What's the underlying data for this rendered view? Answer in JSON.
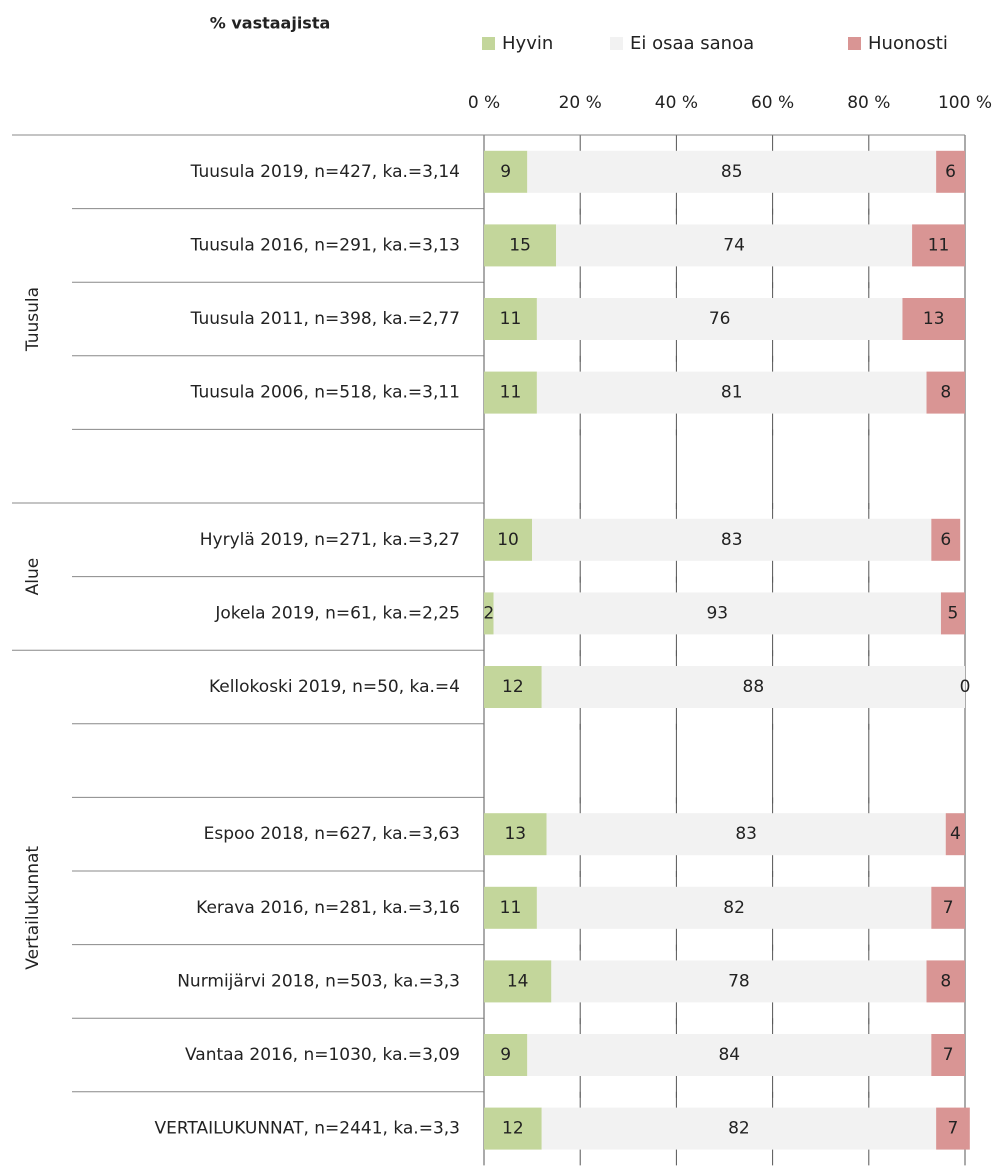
{
  "chart_data": {
    "type": "stacked-bar-horizontal",
    "title": "% vastaajista",
    "categories": [
      "Tuusula 2019, n=427, ka.=3,14",
      "Tuusula 2016, n=291, ka.=3,13",
      "Tuusula 2011, n=398, ka.=2,77",
      "Tuusula 2006, n=518, ka.=3,11",
      null,
      "Hyrylä 2019, n=271, ka.=3,27",
      "Jokela 2019, n=61, ka.=2,25",
      "Kellokoski 2019, n=50, ka.=4",
      null,
      "Espoo 2018, n=627, ka.=3,63",
      "Kerava 2016, n=281, ka.=3,16",
      "Nurmijärvi 2018, n=503, ka.=3,3",
      "Vantaa 2016, n=1030, ka.=3,09",
      "VERTAILUKUNNAT, n=2441, ka.=3,3"
    ],
    "groups": [
      "Tuusula",
      "Alue",
      "Vertailukunnat"
    ],
    "series": [
      {
        "name": "Hyvin",
        "color": "#c3d69b",
        "values": [
          9,
          15,
          11,
          11,
          null,
          10,
          2,
          12,
          null,
          13,
          11,
          14,
          9,
          12
        ]
      },
      {
        "name": "Ei osaa sanoa",
        "color": "#f2f2f2",
        "values": [
          85,
          74,
          76,
          81,
          null,
          83,
          93,
          88,
          null,
          83,
          82,
          78,
          84,
          82
        ]
      },
      {
        "name": "Huonosti",
        "color": "#d99594",
        "values": [
          6,
          11,
          13,
          8,
          null,
          6,
          5,
          0,
          null,
          4,
          7,
          8,
          7,
          7
        ]
      }
    ],
    "xlim": [
      0,
      100
    ],
    "xticks": [
      {
        "value": 0,
        "label": "0 %"
      },
      {
        "value": 20,
        "label": "20 %"
      },
      {
        "value": 40,
        "label": "40 %"
      },
      {
        "value": 60,
        "label": "60 %"
      },
      {
        "value": 80,
        "label": "80 %"
      },
      {
        "value": 100,
        "label": "100 %"
      }
    ],
    "legend": "top",
    "grid": true
  }
}
